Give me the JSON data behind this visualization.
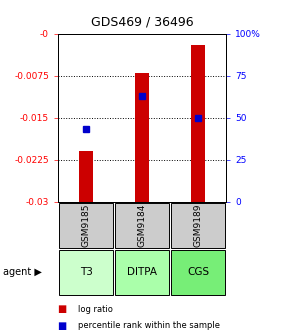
{
  "title": "GDS469 / 36496",
  "samples": [
    "GSM9185",
    "GSM9184",
    "GSM9189"
  ],
  "agents": [
    "T3",
    "DITPA",
    "CGS"
  ],
  "log_ratios": [
    -0.021,
    -0.007,
    -0.002
  ],
  "percentile_ranks": [
    43,
    63,
    50
  ],
  "bar_color": "#cc0000",
  "percentile_color": "#0000cc",
  "ylim_left": [
    -0.03,
    0.0
  ],
  "ylim_right": [
    0,
    100
  ],
  "yticks_left": [
    0.0,
    -0.0075,
    -0.015,
    -0.0225,
    -0.03
  ],
  "ytick_labels_left": [
    "-0",
    "-0.0075",
    "-0.015",
    "-0.0225",
    "-0.03"
  ],
  "yticks_right": [
    0,
    25,
    50,
    75,
    100
  ],
  "ytick_labels_right": [
    "0",
    "25",
    "50",
    "75",
    "100%"
  ],
  "agent_colors": [
    "#ccffcc",
    "#aaffaa",
    "#77ee77"
  ],
  "sample_bg_color": "#cccccc",
  "legend_items": [
    "log ratio",
    "percentile rank within the sample"
  ],
  "bar_width": 0.25
}
